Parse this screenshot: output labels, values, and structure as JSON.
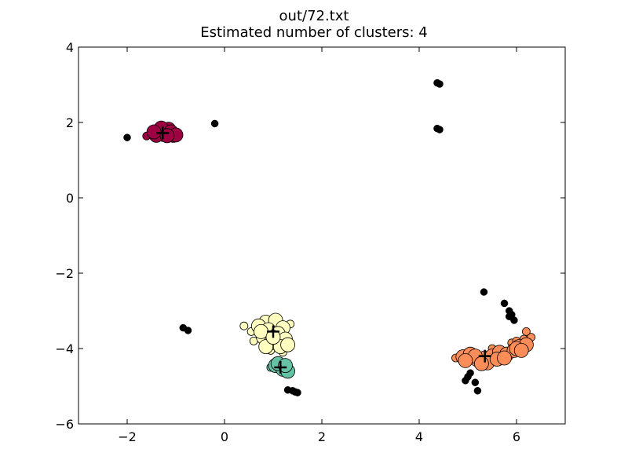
{
  "chart_data": {
    "type": "scatter",
    "title": "out/72.txt",
    "subtitle": "Estimated number of clusters: 4",
    "xlabel": "",
    "ylabel": "",
    "xlim": [
      -3,
      7
    ],
    "ylim": [
      -6,
      4
    ],
    "xticks": [
      -2,
      0,
      2,
      4,
      6
    ],
    "yticks": [
      -6,
      -4,
      -2,
      0,
      2,
      4
    ],
    "xtick_labels": [
      "−2",
      "0",
      "2",
      "4",
      "6"
    ],
    "ytick_labels": [
      "−6",
      "−4",
      "−2",
      "0",
      "2",
      "4"
    ],
    "grid": false,
    "clusters": [
      {
        "color": "#9e0142",
        "center": [
          -1.27,
          1.72
        ],
        "core_points": [
          [
            -1.35,
            1.78
          ],
          [
            -1.15,
            1.82
          ],
          [
            -1.25,
            1.68
          ],
          [
            -1.05,
            1.66
          ],
          [
            -1.4,
            1.66
          ],
          [
            -1.2,
            1.74
          ],
          [
            -1.3,
            1.85
          ],
          [
            -1.1,
            1.75
          ],
          [
            -1.0,
            1.67
          ],
          [
            -1.45,
            1.75
          ],
          [
            -1.18,
            1.65
          ]
        ],
        "edge_points": [
          [
            -1.6,
            1.64
          ],
          [
            -1.5,
            1.7
          ]
        ]
      },
      {
        "color": "#ffffbf",
        "center": [
          1.0,
          -3.55
        ],
        "core_points": [
          [
            0.85,
            -3.3
          ],
          [
            1.05,
            -3.25
          ],
          [
            0.7,
            -3.4
          ],
          [
            1.2,
            -3.45
          ],
          [
            0.9,
            -3.5
          ],
          [
            1.1,
            -3.6
          ],
          [
            0.8,
            -3.7
          ],
          [
            1.25,
            -3.75
          ],
          [
            0.95,
            -3.85
          ],
          [
            1.15,
            -3.95
          ],
          [
            0.85,
            -3.95
          ],
          [
            1.3,
            -3.9
          ],
          [
            0.75,
            -3.55
          ],
          [
            1.0,
            -3.7
          ]
        ],
        "edge_points": [
          [
            0.4,
            -3.4
          ],
          [
            0.55,
            -3.55
          ],
          [
            1.35,
            -3.35
          ],
          [
            0.6,
            -3.8
          ],
          [
            1.2,
            -4.1
          ],
          [
            0.95,
            -4.05
          ]
        ]
      },
      {
        "color": "#66c2a5",
        "center": [
          1.15,
          -4.5
        ],
        "core_points": [
          [
            1.05,
            -4.45
          ],
          [
            1.2,
            -4.55
          ],
          [
            1.3,
            -4.6
          ],
          [
            1.1,
            -4.4
          ],
          [
            1.25,
            -4.45
          ]
        ],
        "edge_points": [
          [
            0.95,
            -4.5
          ],
          [
            1.35,
            -4.65
          ]
        ]
      },
      {
        "color": "#fc8d59",
        "center": [
          5.35,
          -4.2
        ],
        "core_points": [
          [
            4.9,
            -4.22
          ],
          [
            5.05,
            -4.15
          ],
          [
            5.2,
            -4.3
          ],
          [
            5.35,
            -4.25
          ],
          [
            5.5,
            -4.2
          ],
          [
            5.65,
            -4.1
          ],
          [
            5.8,
            -4.15
          ],
          [
            5.95,
            -4.05
          ],
          [
            6.05,
            -3.95
          ],
          [
            6.2,
            -3.9
          ],
          [
            5.15,
            -4.2
          ],
          [
            5.4,
            -4.38
          ],
          [
            5.6,
            -4.28
          ],
          [
            6.0,
            -4.0
          ],
          [
            4.95,
            -4.32
          ],
          [
            5.28,
            -4.4
          ],
          [
            5.75,
            -4.25
          ],
          [
            6.1,
            -4.05
          ]
        ],
        "edge_points": [
          [
            5.25,
            -4.45
          ],
          [
            6.15,
            -3.75
          ],
          [
            6.3,
            -3.7
          ],
          [
            5.9,
            -3.85
          ],
          [
            4.75,
            -4.25
          ],
          [
            6.2,
            -3.55
          ],
          [
            5.5,
            -4.0
          ],
          [
            6.0,
            -3.8
          ]
        ]
      }
    ],
    "noise_color": "#000000",
    "noise_points": [
      [
        -2.0,
        1.6
      ],
      [
        -0.2,
        1.97
      ],
      [
        4.37,
        3.05
      ],
      [
        4.42,
        3.02
      ],
      [
        4.37,
        1.84
      ],
      [
        4.42,
        1.81
      ],
      [
        -0.85,
        -3.45
      ],
      [
        -0.75,
        -3.52
      ],
      [
        5.33,
        -2.5
      ],
      [
        5.75,
        -2.8
      ],
      [
        5.85,
        -3.0
      ],
      [
        5.9,
        -3.1
      ],
      [
        5.85,
        -3.15
      ],
      [
        5.95,
        -3.25
      ],
      [
        5.05,
        -4.65
      ],
      [
        5.0,
        -4.75
      ],
      [
        4.95,
        -4.85
      ],
      [
        5.15,
        -4.9
      ],
      [
        5.2,
        -5.12
      ],
      [
        1.3,
        -5.1
      ],
      [
        1.4,
        -5.12
      ],
      [
        1.45,
        -5.15
      ],
      [
        1.5,
        -5.17
      ]
    ]
  }
}
